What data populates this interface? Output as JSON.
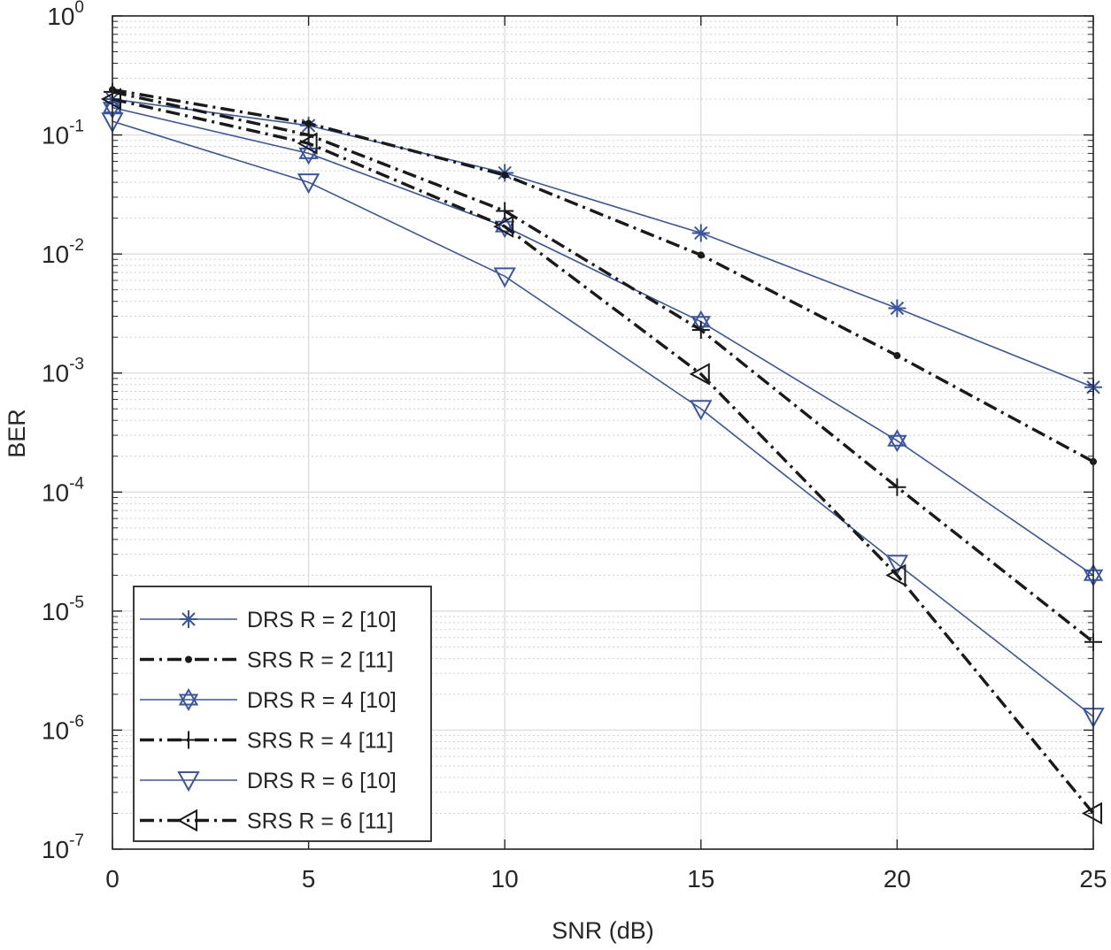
{
  "chart_data": {
    "type": "line",
    "xlabel": "SNR (dB)",
    "ylabel": "BER",
    "xlim": [
      0,
      25
    ],
    "ylim": [
      1e-07,
      1
    ],
    "yscale": "log",
    "grid": true,
    "minor_grid": true,
    "legend_position": "bottom-left",
    "x_ticks": [
      "0",
      "5",
      "10",
      "15",
      "20",
      "25"
    ],
    "y_ticks": [
      {
        "base": "10",
        "exp": "0"
      },
      {
        "base": "10",
        "exp": "-1"
      },
      {
        "base": "10",
        "exp": "-2"
      },
      {
        "base": "10",
        "exp": "-3"
      },
      {
        "base": "10",
        "exp": "-4"
      },
      {
        "base": "10",
        "exp": "-5"
      },
      {
        "base": "10",
        "exp": "-6"
      },
      {
        "base": "10",
        "exp": "-7"
      }
    ],
    "x": [
      0,
      5,
      10,
      15,
      20,
      25
    ],
    "series": [
      {
        "name": "DRS R = 2 [10]",
        "color": "#3a55a4",
        "dash": "solid",
        "marker": "asterisk",
        "values": [
          0.2,
          0.12,
          0.048,
          0.015,
          0.0035,
          0.00076
        ]
      },
      {
        "name": "SRS R = 2 [11]",
        "color": "#1a1a1a",
        "dash": "dashdot",
        "marker": "dot",
        "values": [
          0.24,
          0.125,
          0.046,
          0.0098,
          0.0014,
          0.00018
        ]
      },
      {
        "name": "DRS R = 4 [10]",
        "color": "#3a55a4",
        "dash": "solid",
        "marker": "hexagram",
        "values": [
          0.17,
          0.07,
          0.017,
          0.0027,
          0.00027,
          2e-05
        ]
      },
      {
        "name": "SRS R = 4 [11]",
        "color": "#1a1a1a",
        "dash": "dashdot",
        "marker": "plus",
        "values": [
          0.23,
          0.1,
          0.023,
          0.0023,
          0.00011,
          5.5e-06
        ]
      },
      {
        "name": "DRS R = 6 [10]",
        "color": "#3a55a4",
        "dash": "solid",
        "marker": "triangle-down",
        "values": [
          0.13,
          0.04,
          0.0065,
          0.0005,
          2.5e-05,
          1.3e-06
        ]
      },
      {
        "name": "SRS R = 6 [11]",
        "color": "#1a1a1a",
        "dash": "dashdot",
        "marker": "triangle-left",
        "values": [
          0.2,
          0.085,
          0.017,
          0.00098,
          2e-05,
          2e-07
        ]
      }
    ]
  }
}
